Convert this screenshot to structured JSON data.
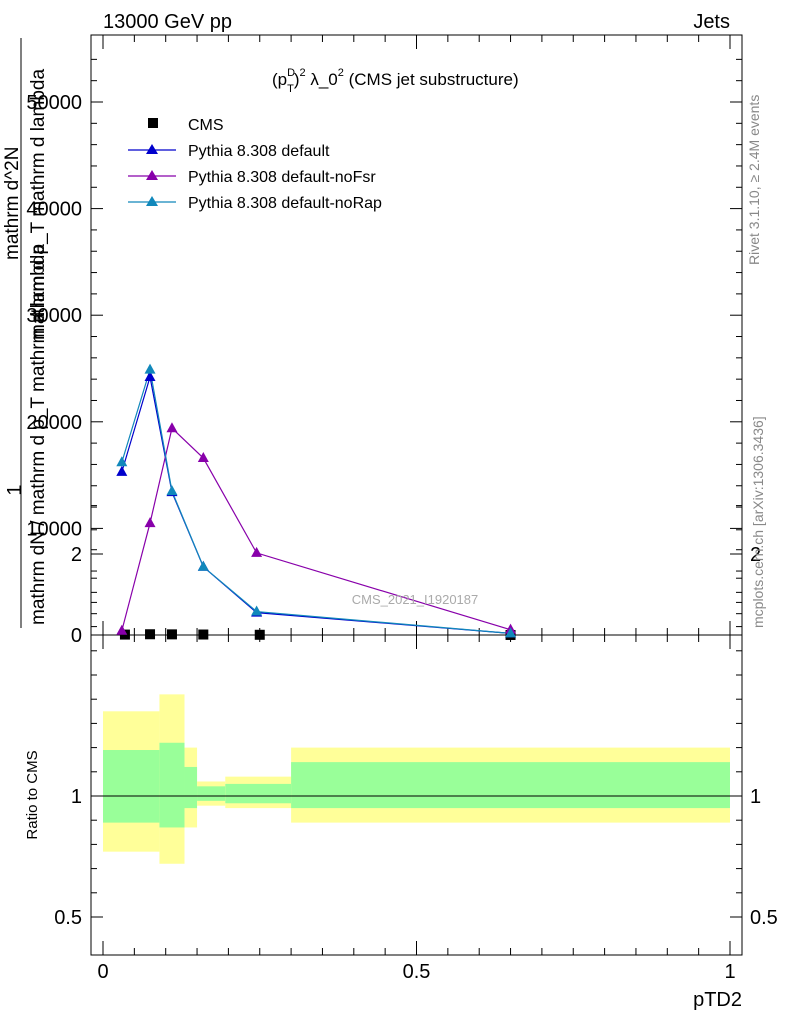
{
  "header": {
    "left": "13000 GeV pp",
    "right": "Jets"
  },
  "side_labels": {
    "right_top": "Rivet 3.1.10, ≥ 2.4M events",
    "right_bottom": "mcplots.cern.ch [arXiv:1306.3436]"
  },
  "colors": {
    "cms": "#000000",
    "default": "#0000cc",
    "noFsr": "#8800aa",
    "noRap": "#1188bb",
    "band_stat": "#99ff99",
    "band_total": "#ffff99"
  },
  "chart_data": [
    {
      "type": "line",
      "title": "(p_T^D)^2 λ_0^2 (CMS jet substructure)",
      "title_parts": {
        "a": "(p",
        "sup1": "D",
        "sub1": "T",
        "b": ")",
        "sup2": "2",
        "c": " λ_0",
        "sup3": "2",
        "d": " (CMS jet substructure)"
      },
      "ylabel_lines": [
        "1",
        "mathrm dN / mathrm d p_T mathrm d lambda",
        "mathrm d^2N",
        "mathrm d p_T mathrm d lambda"
      ],
      "xlabel": "pTD2",
      "watermark": "CMS_2021_I1920187",
      "xlim": [
        0,
        1
      ],
      "ylim": [
        0,
        50000
      ],
      "yticks": [
        0,
        10000,
        20000,
        30000,
        40000,
        50000
      ],
      "ytick_labels": [
        "0",
        "10000",
        "20000",
        "30000",
        "40000",
        "50000"
      ],
      "legend_position": "top-left",
      "series": [
        {
          "name": "CMS",
          "marker": "square",
          "x": [
            0.035,
            0.075,
            0.11,
            0.16,
            0.25,
            0.65
          ],
          "y": [
            40,
            70,
            60,
            45,
            20,
            3
          ]
        },
        {
          "name": "Pythia 8.308 default",
          "marker": "triangle",
          "x": [
            0.03,
            0.075,
            0.11,
            0.16,
            0.245,
            0.65
          ],
          "y": [
            15300,
            24200,
            13400,
            6400,
            2100,
            150
          ]
        },
        {
          "name": "Pythia 8.308 default-noFsr",
          "marker": "triangle",
          "x": [
            0.03,
            0.075,
            0.11,
            0.16,
            0.245,
            0.65
          ],
          "y": [
            400,
            10500,
            19400,
            16600,
            7700,
            500
          ]
        },
        {
          "name": "Pythia 8.308 default-noRap",
          "marker": "triangle",
          "x": [
            0.03,
            0.075,
            0.11,
            0.16,
            0.245,
            0.65
          ],
          "y": [
            16200,
            24900,
            13500,
            6400,
            2200,
            150
          ]
        }
      ]
    },
    {
      "type": "area",
      "ylabel": "Ratio to CMS",
      "xlim": [
        0,
        1
      ],
      "ylim": [
        0.4,
        2.3
      ],
      "xticks": [
        0,
        0.5,
        1
      ],
      "xtick_labels": [
        "0",
        "0.5",
        "1"
      ],
      "yticks": [
        0.5,
        1,
        2
      ],
      "ytick_labels": [
        "0.5",
        "1",
        "2"
      ],
      "bins": [
        {
          "lo": 0.0,
          "hi": 0.09,
          "stat": [
            0.89,
            1.19
          ],
          "total": [
            0.77,
            1.35
          ]
        },
        {
          "lo": 0.09,
          "hi": 0.09,
          "stat": [
            0.89,
            1.19
          ],
          "total": [
            0.77,
            1.35
          ]
        },
        {
          "lo": 0.09,
          "hi": 0.13,
          "stat": [
            0.87,
            1.22
          ],
          "total": [
            0.72,
            1.42
          ]
        },
        {
          "lo": 0.13,
          "hi": 0.15,
          "stat": [
            0.95,
            1.12
          ],
          "total": [
            0.87,
            1.2
          ]
        },
        {
          "lo": 0.15,
          "hi": 0.195,
          "stat": [
            0.98,
            1.04
          ],
          "total": [
            0.96,
            1.06
          ]
        },
        {
          "lo": 0.195,
          "hi": 0.3,
          "stat": [
            0.97,
            1.05
          ],
          "total": [
            0.95,
            1.08
          ]
        },
        {
          "lo": 0.3,
          "hi": 1.0,
          "stat": [
            0.95,
            1.14
          ],
          "total": [
            0.89,
            1.2
          ]
        }
      ]
    }
  ]
}
